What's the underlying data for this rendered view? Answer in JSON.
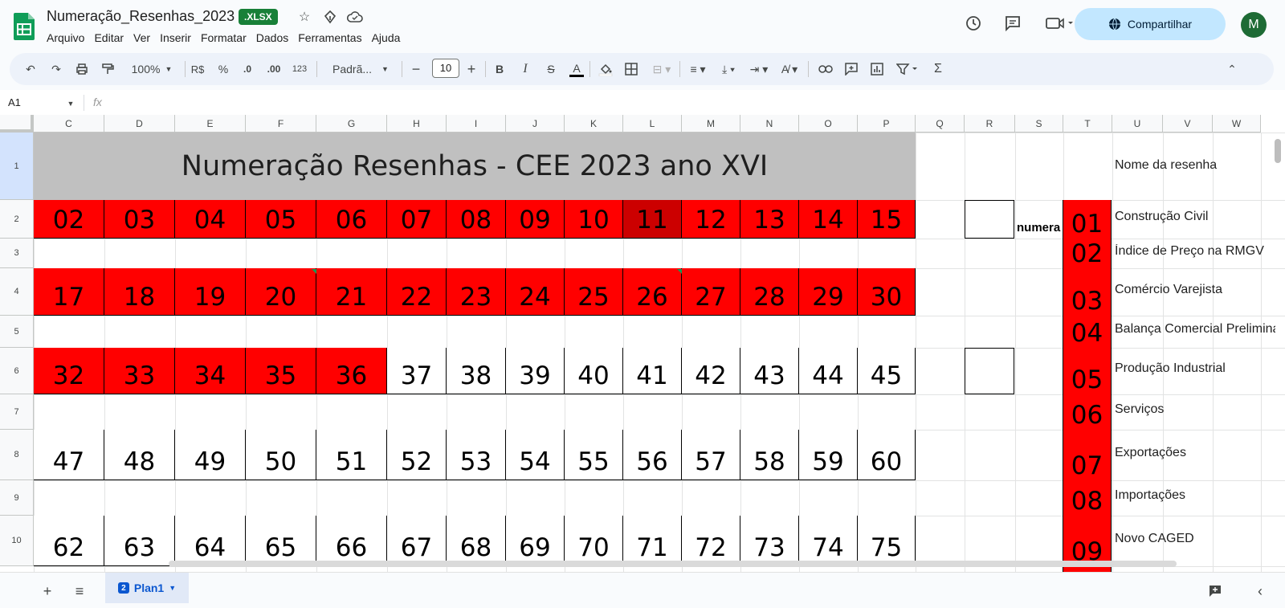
{
  "header": {
    "title": "Numeração_Resenhas_2023",
    "badge": ".XLSX",
    "menu": [
      "Arquivo",
      "Editar",
      "Ver",
      "Inserir",
      "Formatar",
      "Dados",
      "Ferramentas",
      "Ajuda"
    ],
    "share_label": "Compartilhar",
    "avatar_letter": "M"
  },
  "toolbar": {
    "zoom": "100%",
    "currency": "R$",
    "percent": "%",
    "dec_less": ".0",
    "dec_more": ".00",
    "number_fmt": "123",
    "font": "Padrã...",
    "font_size": "10"
  },
  "formula_bar": {
    "cell_ref": "A1",
    "fx": "fx"
  },
  "grid": {
    "columns": [
      "C",
      "D",
      "E",
      "F",
      "G",
      "H",
      "I",
      "J",
      "K",
      "L",
      "M",
      "N",
      "O",
      "P",
      "Q",
      "R",
      "S",
      "T",
      "U",
      "V",
      "W"
    ],
    "rows": [
      "1",
      "2",
      "3",
      "4",
      "5",
      "6",
      "7",
      "8",
      "9",
      "10"
    ],
    "title": "Numeração Resenhas - CEE 2023   ano XVI",
    "row2": [
      "02",
      "03",
      "04",
      "05",
      "06",
      "07",
      "08",
      "09",
      "10",
      "11",
      "12",
      "13",
      "14",
      "15"
    ],
    "row4": [
      "17",
      "18",
      "19",
      "20",
      "21",
      "22",
      "23",
      "24",
      "25",
      "26",
      "27",
      "28",
      "29",
      "30"
    ],
    "row6": [
      "32",
      "33",
      "34",
      "35",
      "36",
      "37",
      "38",
      "39",
      "40",
      "41",
      "42",
      "43",
      "44",
      "45"
    ],
    "row8": [
      "47",
      "48",
      "49",
      "50",
      "51",
      "52",
      "53",
      "54",
      "55",
      "56",
      "57",
      "58",
      "59",
      "60"
    ],
    "row10": [
      "62",
      "63",
      "64",
      "65",
      "66",
      "67",
      "68",
      "69",
      "70",
      "71",
      "72",
      "73",
      "74",
      "75"
    ],
    "numera_label": "numera",
    "side_header": "Nome da resenha",
    "side_list": [
      {
        "num": "01",
        "name": "Construção Civil"
      },
      {
        "num": "02",
        "name": "Índice de Preço na RMGV"
      },
      {
        "num": "03",
        "name": "Comércio Varejista"
      },
      {
        "num": "04",
        "name": "Balança Comercial Preliminar"
      },
      {
        "num": "05",
        "name": "Produção Industrial"
      },
      {
        "num": "06",
        "name": "Serviços"
      },
      {
        "num": "07",
        "name": "Exportações"
      },
      {
        "num": "08",
        "name": "Importações"
      },
      {
        "num": "09",
        "name": "Novo CAGED"
      }
    ]
  },
  "sheets": {
    "active": "Plan1",
    "badge": "2"
  },
  "colors": {
    "red": "#ff0000",
    "dark_red": "#cc0000",
    "title_band": "#c0c0c0",
    "share": "#c2e7ff"
  }
}
